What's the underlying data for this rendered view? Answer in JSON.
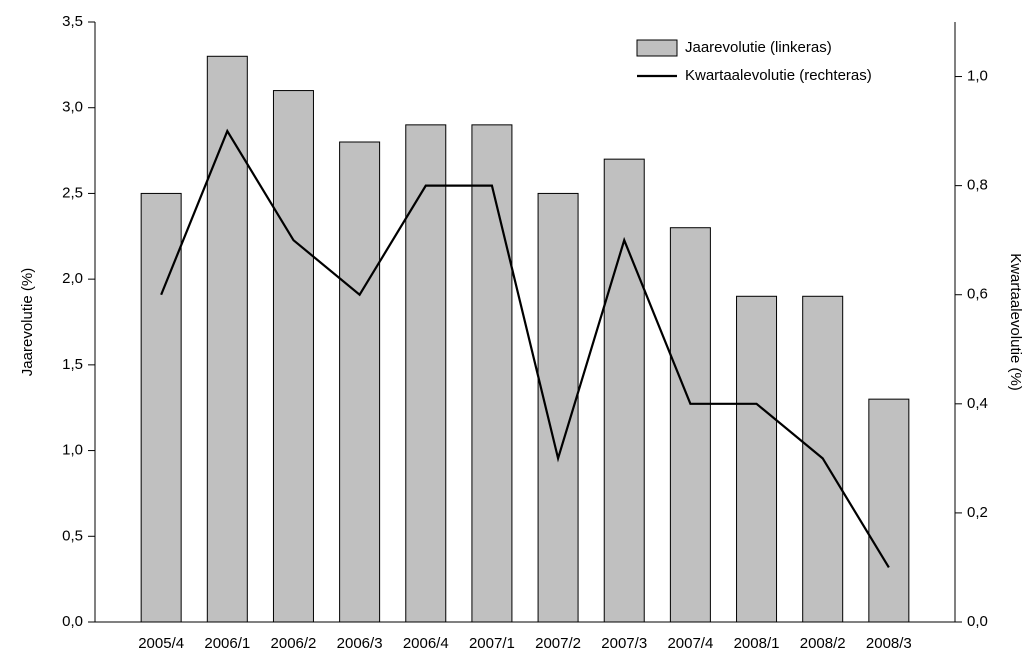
{
  "chart_data": {
    "type": "bar_line",
    "categories": [
      "2005/4",
      "2006/1",
      "2006/2",
      "2006/3",
      "2006/4",
      "2007/1",
      "2007/2",
      "2007/3",
      "2007/4",
      "2008/1",
      "2008/2",
      "2008/3"
    ],
    "series": [
      {
        "name": "Jaarevolutie (linkeras)",
        "type": "bar",
        "color": "#c0c0c0",
        "values": [
          2.5,
          3.3,
          3.1,
          2.8,
          2.9,
          2.9,
          2.5,
          2.7,
          2.3,
          1.9,
          1.9,
          1.3
        ]
      },
      {
        "name": "Kwartaalevolutie (rechteras)",
        "type": "line",
        "axis": "y2",
        "color": "#000000",
        "values": [
          0.6,
          0.9,
          0.7,
          0.6,
          0.8,
          0.8,
          0.3,
          0.7,
          0.4,
          0.4,
          0.3,
          0.1
        ]
      }
    ],
    "y_label": "Jaarevolutie (%)",
    "y2_label": "Kwartaalevolutie (%)",
    "ylim": [
      0,
      3.5
    ],
    "yticks": [
      {
        "value": 0,
        "label": "0,0"
      },
      {
        "value": 0.5,
        "label": "0,5"
      },
      {
        "value": 1,
        "label": "1,0"
      },
      {
        "value": 1.5,
        "label": "1,5"
      },
      {
        "value": 2,
        "label": "2,0"
      },
      {
        "value": 2.5,
        "label": "2,5"
      },
      {
        "value": 3,
        "label": "3,0"
      },
      {
        "value": 3.5,
        "label": "3,5"
      }
    ],
    "y2lim": [
      0,
      1.1
    ],
    "y2ticks": [
      {
        "value": 0,
        "label": "0,0"
      },
      {
        "value": 0.2,
        "label": "0,2"
      },
      {
        "value": 0.4,
        "label": "0,4"
      },
      {
        "value": 0.6,
        "label": "0,6"
      },
      {
        "value": 0.8,
        "label": "0,8"
      },
      {
        "value": 1,
        "label": "1,0"
      }
    ],
    "legend": "upper right",
    "grid": false
  }
}
